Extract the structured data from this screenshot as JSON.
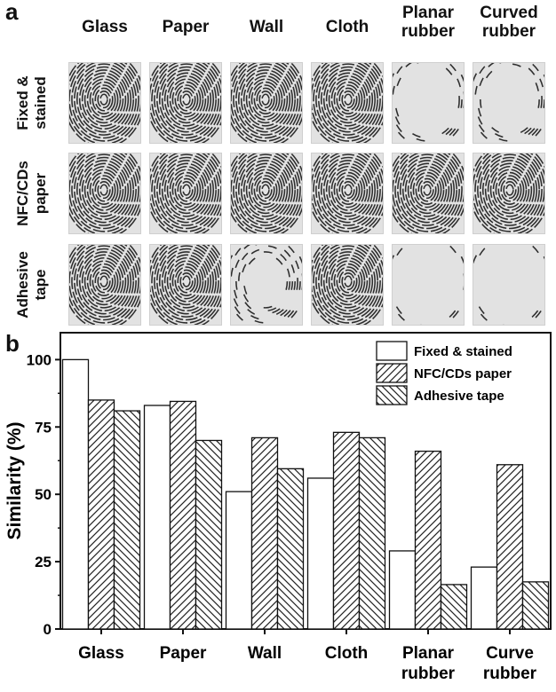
{
  "panel_a": {
    "label": "a",
    "columns": [
      [
        "Glass"
      ],
      [
        "Paper"
      ],
      [
        "Wall"
      ],
      [
        "Cloth"
      ],
      [
        "Planar",
        "rubber"
      ],
      [
        "Curved",
        "rubber"
      ]
    ],
    "rows": [
      [
        "Fixed &",
        "stained"
      ],
      [
        "NFC/CDs",
        "paper"
      ],
      [
        "Adhesive",
        "tape"
      ]
    ],
    "ridge_coverage": [
      [
        1.0,
        1.0,
        1.0,
        1.0,
        0.25,
        0.3
      ],
      [
        1.0,
        1.0,
        1.0,
        1.0,
        0.9,
        0.95
      ],
      [
        0.9,
        0.8,
        0.5,
        0.85,
        0.1,
        0.15
      ]
    ],
    "colors": {
      "ridge": "#1a1a1a",
      "background": "#e2e2e2"
    }
  },
  "chart_data": {
    "label": "b",
    "type": "bar",
    "categories": [
      [
        "Glass"
      ],
      [
        "Paper"
      ],
      [
        "Wall"
      ],
      [
        "Cloth"
      ],
      [
        "Planar",
        "rubber"
      ],
      [
        "Curve",
        "rubber"
      ]
    ],
    "series": [
      {
        "name": "Fixed & stained",
        "values": [
          100,
          83,
          51,
          56,
          29,
          23
        ],
        "pattern": "empty"
      },
      {
        "name": "NFC/CDs paper",
        "values": [
          85,
          84.5,
          71,
          73,
          66,
          61
        ],
        "pattern": "hatch-forward"
      },
      {
        "name": "Adhesive tape",
        "values": [
          81,
          70,
          59.5,
          71,
          16.5,
          17.5
        ],
        "pattern": "hatch-back"
      }
    ],
    "ylabel": "Similarity (%)",
    "xlabel": "",
    "ylim": [
      0,
      110
    ],
    "yticks": [
      "0",
      "25",
      "50",
      "75",
      "100"
    ],
    "legend_position": "top-right",
    "grid": false
  }
}
